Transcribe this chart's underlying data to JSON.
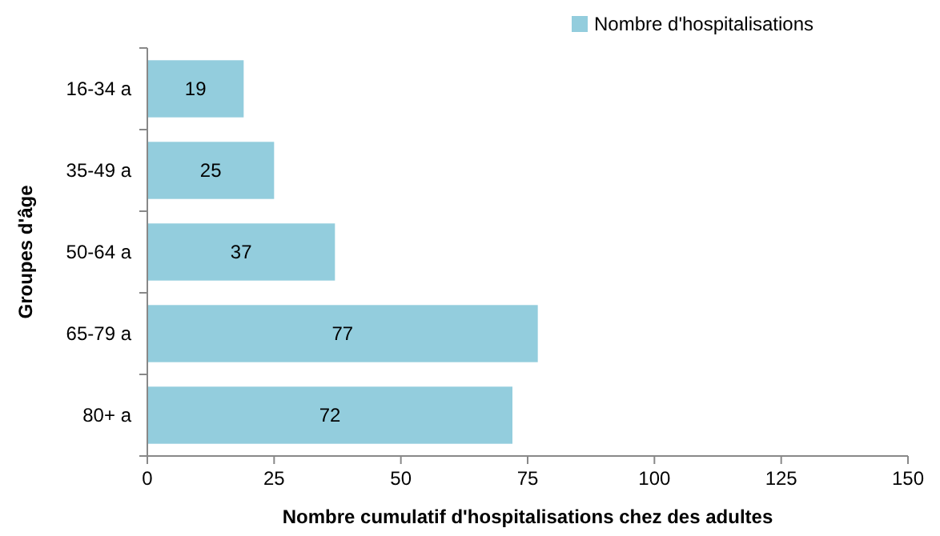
{
  "chart_data": {
    "type": "bar",
    "orientation": "horizontal",
    "xlabel": "Nombre cumulatif d'hospitalisations chez des adultes",
    "ylabel": "Groupes d'âge",
    "categories": [
      "16-34 a",
      "35-49 a",
      "50-64 a",
      "65-79 a",
      "80+ a"
    ],
    "series": [
      {
        "name": "Nombre d'hospitalisations",
        "color": "#93cddd",
        "values": [
          19,
          25,
          37,
          77,
          72
        ]
      }
    ],
    "xlim": [
      0,
      150
    ],
    "xticks": [
      0,
      25,
      50,
      75,
      100,
      125,
      150
    ],
    "data_labels": true,
    "legend": "top right",
    "grid": false
  }
}
